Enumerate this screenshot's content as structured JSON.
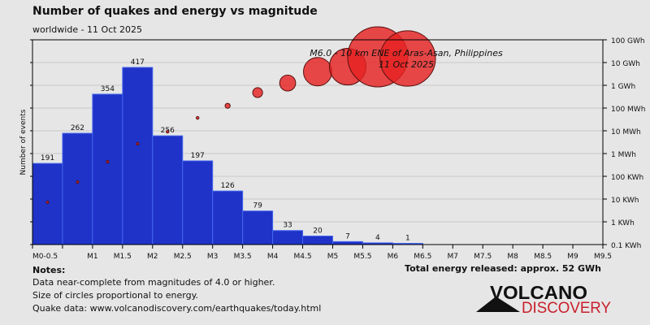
{
  "header": {
    "title": "Number of quakes and energy vs magnitude",
    "subtitle": "worldwide - 11 Oct 2025"
  },
  "chart_data": {
    "type": "bar",
    "title": "Number of quakes and energy vs magnitude",
    "subtitle": "worldwide - 11 Oct 2025",
    "ylabel": "Number of events",
    "ylim": [
      0,
      482
    ],
    "x_ticks": [
      "M0-0.5",
      "",
      "M1",
      "M1.5",
      "M2",
      "M2.5",
      "M3",
      "M3.5",
      "M4",
      "M4.5",
      "M5",
      "M5.5",
      "M6",
      "M6.5",
      "M7",
      "M7.5",
      "M8",
      "M8.5",
      "M9",
      "M9.5"
    ],
    "bins": [
      "0-0.5",
      "0.5-1",
      "1-1.5",
      "1.5-2",
      "2-2.5",
      "2.5-3",
      "3-3.5",
      "3.5-4",
      "4-4.5",
      "4.5-5",
      "5-5.5",
      "5.5-6",
      "6-6.5"
    ],
    "counts": [
      191,
      262,
      354,
      417,
      256,
      197,
      126,
      79,
      33,
      20,
      7,
      4,
      1
    ],
    "energy_series": {
      "name": "Energy released (circle size proportional to energy)",
      "unit": "KWh",
      "log10_kwh": [
        0.86,
        1.75,
        2.64,
        3.43,
        3.96,
        4.57,
        5.1,
        5.68,
        6.1,
        6.6,
        6.82,
        7.25,
        7.18
      ]
    },
    "y2_ticks": [
      "0.1 KWh",
      "1 KWh",
      "10 KWh",
      "100 KWh",
      "1 MWh",
      "10 MWh",
      "100 MWh",
      "1 GWh",
      "10 GWh",
      "100 GWh"
    ],
    "y2_range_kwh": [
      0.1,
      100000000
    ],
    "annotation": {
      "line1": "M6.0 - 10 km ENE of Aras-Asan, Philippines",
      "line2": "11 Oct 2025"
    },
    "grid": true
  },
  "colors": {
    "bar": "#1f33c8",
    "bar_edge": "#4466ee",
    "circle": "#e52222",
    "circle_edge": "#5a1010"
  },
  "footer": {
    "notes_title": "Notes:",
    "notes": [
      "Data near-complete from magnitudes of 4.0 or higher.",
      "Size of circles proportional to energy.",
      "Quake data: www.volcanodiscovery.com/earthquakes/today.html"
    ],
    "total_energy": "Total energy released: approx. 52 GWh"
  },
  "logo": {
    "line1": "VOLCANO",
    "line2": "DISCOVERY"
  }
}
